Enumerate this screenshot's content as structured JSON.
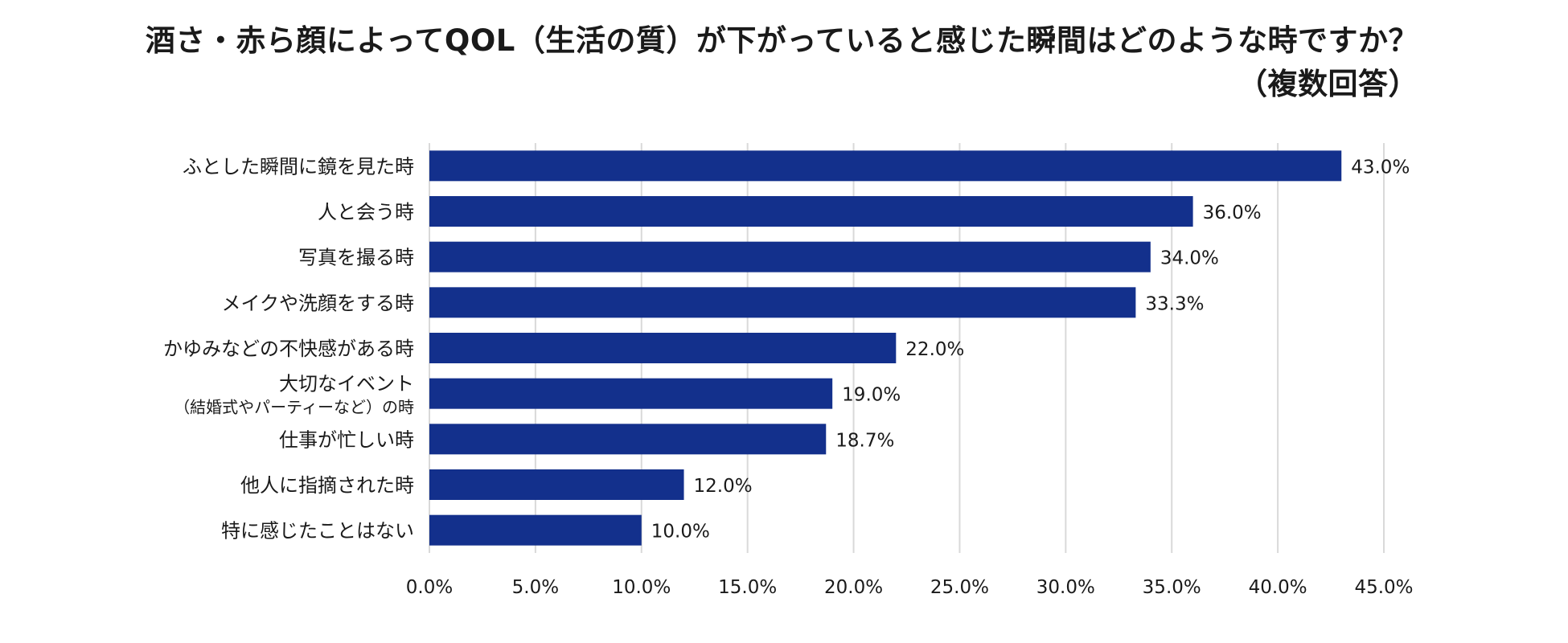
{
  "chart_data": {
    "type": "bar",
    "orientation": "horizontal",
    "title": "酒さ・赤ら顔によってQOL（生活の質）が下がっていると感じた瞬間はどのような時ですか？",
    "subtitle": "（複数回答）",
    "categories": [
      [
        "ふとした瞬間に鏡を見た時"
      ],
      [
        "人と会う時"
      ],
      [
        "写真を撮る時"
      ],
      [
        "メイクや洗顔をする時"
      ],
      [
        "かゆみなどの不快感がある時"
      ],
      [
        "大切なイベント",
        "（結婚式やパーティーなど）の時"
      ],
      [
        "仕事が忙しい時"
      ],
      [
        "他人に指摘された時"
      ],
      [
        "特に感じたことはない"
      ]
    ],
    "values": [
      43.0,
      36.0,
      34.0,
      33.3,
      22.0,
      19.0,
      18.7,
      12.0,
      10.0
    ],
    "value_labels": [
      "43.0%",
      "36.0%",
      "34.0%",
      "33.3%",
      "22.0%",
      "19.0%",
      "18.7%",
      "12.0%",
      "10.0%"
    ],
    "x_ticks": [
      "0.0%",
      "5.0%",
      "10.0%",
      "15.0%",
      "20.0%",
      "25.0%",
      "30.0%",
      "35.0%",
      "40.0%",
      "45.0%"
    ],
    "xlim": [
      0,
      45
    ],
    "grid": true,
    "bar_color": "#13308c",
    "grid_color": "#d9d9d9"
  }
}
